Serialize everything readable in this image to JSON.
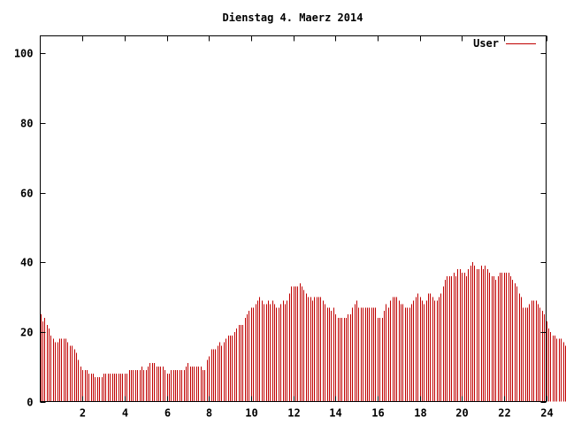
{
  "chart_data": {
    "type": "bar",
    "title": "Dienstag 4. Maerz 2014",
    "xlabel": "",
    "ylabel": "",
    "xlim": [
      0,
      24
    ],
    "ylim": [
      0,
      105
    ],
    "x_ticks": [
      2,
      4,
      6,
      8,
      10,
      12,
      14,
      16,
      18,
      20,
      22,
      24
    ],
    "y_ticks": [
      0,
      20,
      40,
      60,
      80,
      100
    ],
    "legend_position": "top-right",
    "grid": false,
    "series": [
      {
        "name": "User",
        "color": "#c00000",
        "x_start": 0,
        "x_step": 0.1,
        "values": [
          25,
          23,
          24,
          22,
          21,
          19,
          18,
          17,
          17,
          18,
          18,
          18,
          18,
          17,
          16,
          16,
          15,
          14,
          12,
          10,
          9,
          9,
          9,
          8,
          8,
          8,
          7,
          7,
          7,
          7,
          8,
          8,
          8,
          8,
          8,
          8,
          8,
          8,
          8,
          8,
          8,
          8,
          9,
          9,
          9,
          9,
          9,
          9,
          10,
          9,
          9,
          10,
          11,
          11,
          11,
          10,
          10,
          10,
          10,
          9,
          8,
          8,
          9,
          9,
          9,
          9,
          9,
          9,
          9,
          10,
          11,
          10,
          10,
          10,
          10,
          10,
          10,
          9,
          9,
          12,
          13,
          15,
          15,
          15,
          16,
          17,
          16,
          17,
          18,
          19,
          19,
          19,
          20,
          21,
          22,
          22,
          22,
          24,
          25,
          26,
          27,
          27,
          28,
          29,
          30,
          29,
          28,
          28,
          29,
          28,
          29,
          28,
          27,
          27,
          28,
          29,
          28,
          29,
          31,
          33,
          33,
          33,
          33,
          34,
          33,
          32,
          31,
          30,
          30,
          29,
          30,
          30,
          30,
          30,
          29,
          28,
          27,
          27,
          26,
          27,
          25,
          24,
          24,
          24,
          24,
          24,
          25,
          25,
          27,
          28,
          29,
          27,
          27,
          27,
          27,
          27,
          27,
          27,
          27,
          27,
          24,
          24,
          24,
          26,
          28,
          27,
          29,
          30,
          30,
          30,
          29,
          28,
          28,
          27,
          27,
          27,
          28,
          29,
          30,
          31,
          30,
          29,
          28,
          29,
          31,
          31,
          30,
          29,
          29,
          30,
          31,
          33,
          35,
          36,
          36,
          36,
          37,
          36,
          38,
          38,
          37,
          37,
          36,
          38,
          39,
          40,
          39,
          38,
          38,
          39,
          38,
          39,
          38,
          37,
          36,
          36,
          35,
          36,
          37,
          37,
          37,
          37,
          37,
          36,
          35,
          34,
          33,
          31,
          30,
          27,
          27,
          27,
          28,
          29,
          29,
          29,
          28,
          27,
          26,
          25,
          23,
          21,
          20,
          19,
          19,
          18,
          18,
          18,
          17,
          16,
          15
        ]
      }
    ]
  }
}
